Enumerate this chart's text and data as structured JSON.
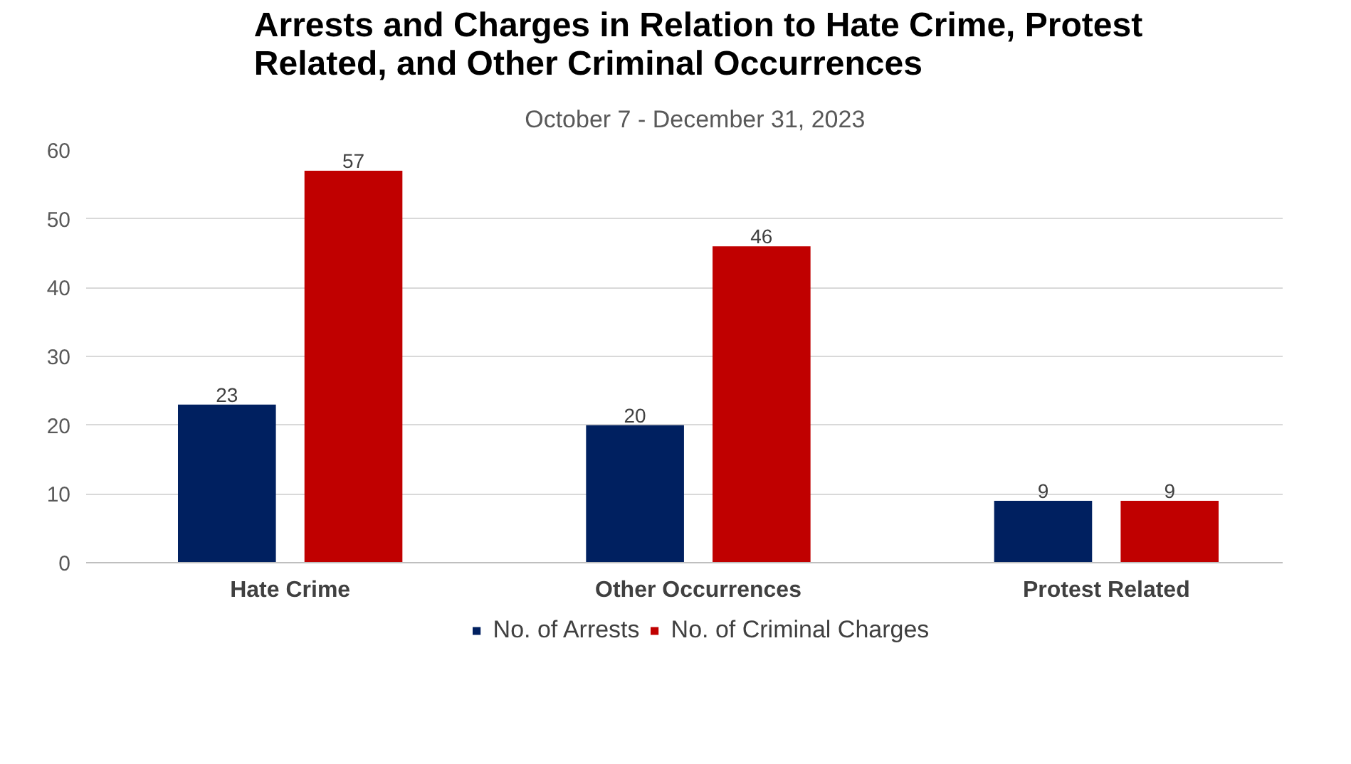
{
  "chart_data": {
    "type": "bar",
    "title": "Arrests and Charges in Relation to Hate Crime, Protest Related, and Other Criminal Occurrences",
    "subtitle": "October 7  - December 31, 2023",
    "categories": [
      "Hate Crime",
      "Other Occurrences",
      "Protest Related"
    ],
    "series": [
      {
        "name": "No. of Arrests",
        "color": "#002060",
        "values": [
          23,
          20,
          9
        ]
      },
      {
        "name": "No. of Criminal Charges",
        "color": "#c00000",
        "values": [
          57,
          46,
          9
        ]
      }
    ],
    "ylim": [
      0,
      60
    ],
    "yticks": [
      0,
      10,
      20,
      30,
      40,
      50,
      60
    ],
    "grid": "y",
    "legend": "bottom",
    "data_labels": true
  }
}
